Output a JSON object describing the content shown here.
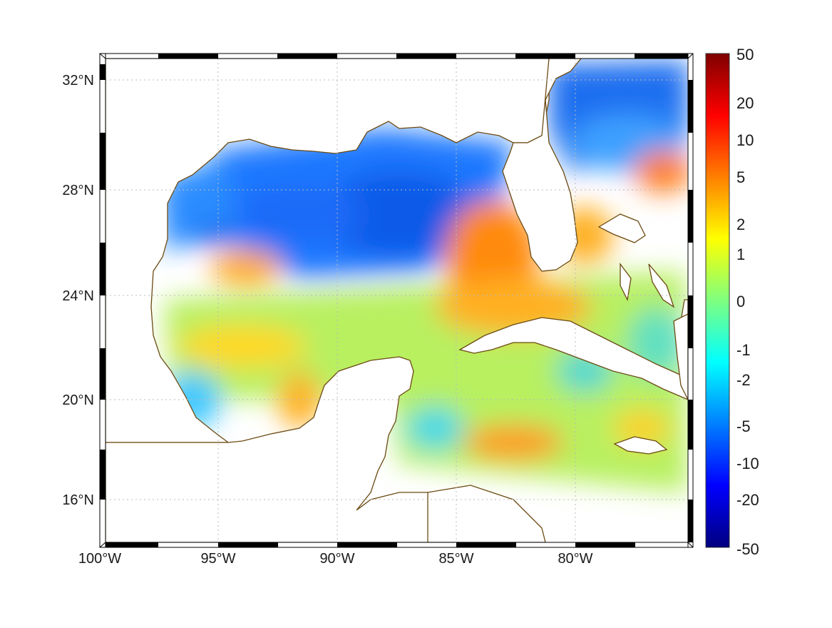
{
  "map": {
    "lon_range": [
      -100,
      -75
    ],
    "lat_range": [
      14.3,
      33
    ],
    "x_ticks": [
      "100°W",
      "95°W",
      "90°W",
      "85°W",
      "80°W"
    ],
    "y_ticks": [
      "32°N",
      "28°N",
      "24°N",
      "20°N",
      "16°N"
    ],
    "grid": true,
    "coastline_color": "#6b4a12",
    "land_color": "#ffffff"
  },
  "colorbar": {
    "labels": [
      "50",
      "20",
      "10",
      "5",
      "2",
      "1",
      "0",
      "-1",
      "-2",
      "-5",
      "-10",
      "-20",
      "-50"
    ],
    "range": [
      -50,
      50
    ],
    "colormap": "jet",
    "colors": [
      "#00007f",
      "#0000ff",
      "#007fff",
      "#00ffff",
      "#7fff7f",
      "#ffff00",
      "#ff7f00",
      "#ff0000",
      "#7f0000"
    ]
  }
}
